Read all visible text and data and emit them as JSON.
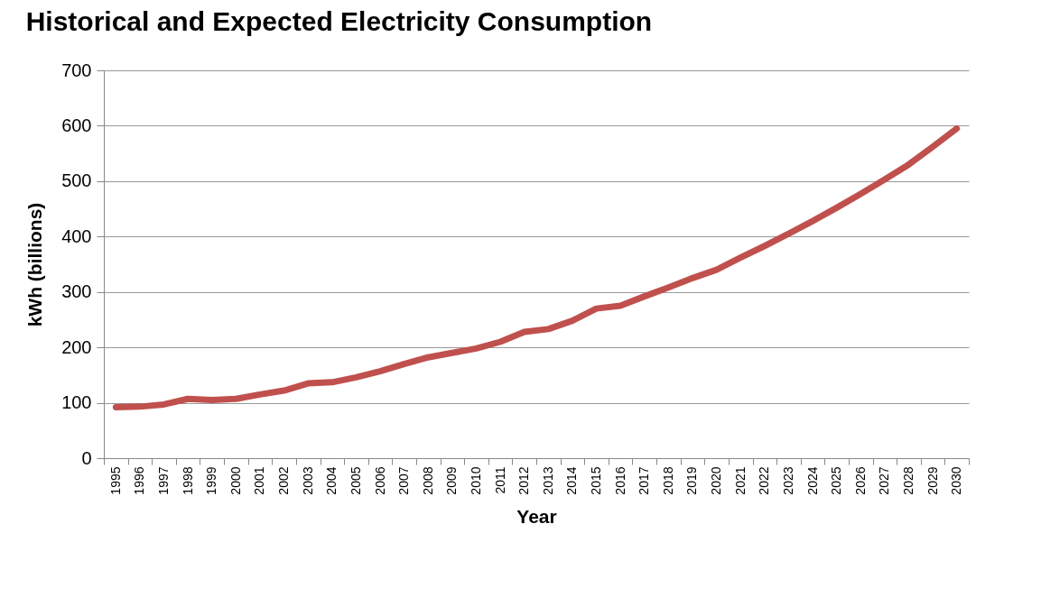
{
  "chart_data": {
    "type": "line",
    "title": "Historical and Expected Electricity Consumption",
    "xlabel": "Year",
    "ylabel": "kWh (billions)",
    "categories": [
      "1995",
      "1996",
      "1997",
      "1998",
      "1999",
      "2000",
      "2001",
      "2002",
      "2003",
      "2004",
      "2005",
      "2006",
      "2007",
      "2008",
      "2009",
      "2010",
      "2011",
      "2012",
      "2013",
      "2014",
      "2015",
      "2016",
      "2017",
      "2018",
      "2019",
      "2020",
      "2021",
      "2022",
      "2023",
      "2024",
      "2025",
      "2026",
      "2027",
      "2028",
      "2029",
      "2030"
    ],
    "series": [
      {
        "color": "#c0504d",
        "values": [
          92,
          93,
          97,
          107,
          105,
          107,
          115,
          122,
          135,
          137,
          146,
          157,
          170,
          182,
          190,
          198,
          210,
          228,
          233,
          248,
          270,
          275,
          292,
          308,
          325,
          340,
          362,
          383,
          405,
          428,
          452,
          477,
          503,
          530,
          562,
          595
        ]
      }
    ],
    "ylim": [
      0,
      700
    ],
    "yticks": [
      0,
      100,
      200,
      300,
      400,
      500,
      600,
      700
    ],
    "grid": "y",
    "legend": false,
    "marker": "none",
    "line_style": "solid"
  }
}
